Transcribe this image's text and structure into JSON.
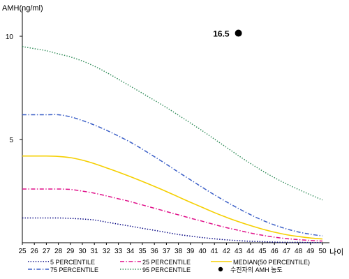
{
  "chart_data": {
    "type": "line",
    "title": "",
    "ylabel": "AMH(ng/ml)",
    "xlabel": "나이",
    "x": [
      25,
      26,
      27,
      28,
      29,
      30,
      31,
      32,
      33,
      34,
      35,
      36,
      37,
      38,
      39,
      40,
      41,
      42,
      43,
      44,
      45,
      46,
      47,
      48,
      49,
      50
    ],
    "xlim": [
      25,
      50
    ],
    "ylim": [
      0,
      11
    ],
    "yticks": [
      5,
      10
    ],
    "grid": false,
    "legend_position": "bottom",
    "series": [
      {
        "name": "5 PERCENTILE",
        "color": "#000080",
        "dash": "dotted",
        "values": [
          1.2,
          1.2,
          1.2,
          1.2,
          1.18,
          1.15,
          1.1,
          1.0,
          0.9,
          0.8,
          0.7,
          0.6,
          0.5,
          0.4,
          0.32,
          0.25,
          0.19,
          0.14,
          0.1,
          0.07,
          0.05,
          0.03,
          0.02,
          0.02,
          0.01,
          0.01
        ]
      },
      {
        "name": "25 PERCENTILE",
        "color": "#e0118a",
        "dash": "dashdot",
        "values": [
          2.6,
          2.6,
          2.6,
          2.6,
          2.58,
          2.5,
          2.4,
          2.27,
          2.13,
          1.99,
          1.83,
          1.67,
          1.51,
          1.35,
          1.19,
          1.04,
          0.88,
          0.73,
          0.6,
          0.47,
          0.36,
          0.27,
          0.2,
          0.15,
          0.11,
          0.08
        ]
      },
      {
        "name": "MEDIAN(50 PERCENTILE)",
        "color": "#f5cf00",
        "dash": "solid",
        "values": [
          4.2,
          4.2,
          4.2,
          4.18,
          4.12,
          4.0,
          3.83,
          3.63,
          3.42,
          3.2,
          2.97,
          2.73,
          2.48,
          2.22,
          1.96,
          1.71,
          1.46,
          1.23,
          1.02,
          0.83,
          0.66,
          0.51,
          0.39,
          0.3,
          0.23,
          0.18
        ]
      },
      {
        "name": "75 PERCENTILE",
        "color": "#3b5fc7",
        "dash": "dashdot",
        "values": [
          6.2,
          6.2,
          6.2,
          6.2,
          6.1,
          5.92,
          5.7,
          5.45,
          5.17,
          4.87,
          4.53,
          4.17,
          3.8,
          3.42,
          3.05,
          2.68,
          2.32,
          1.98,
          1.66,
          1.36,
          1.09,
          0.86,
          0.67,
          0.52,
          0.41,
          0.33
        ]
      },
      {
        "name": "95 PERCENTILE",
        "color": "#2e8b57",
        "dash": "dotted",
        "values": [
          9.5,
          9.4,
          9.3,
          9.15,
          9.0,
          8.8,
          8.55,
          8.25,
          7.92,
          7.58,
          7.24,
          6.9,
          6.55,
          6.18,
          5.8,
          5.42,
          5.02,
          4.62,
          4.22,
          3.84,
          3.48,
          3.15,
          2.85,
          2.58,
          2.32,
          2.07
        ]
      }
    ],
    "marker": {
      "name": "수진자의 AMH 농도",
      "x": 43,
      "y": 10.15,
      "label": "16.5",
      "color": "#000000"
    }
  }
}
